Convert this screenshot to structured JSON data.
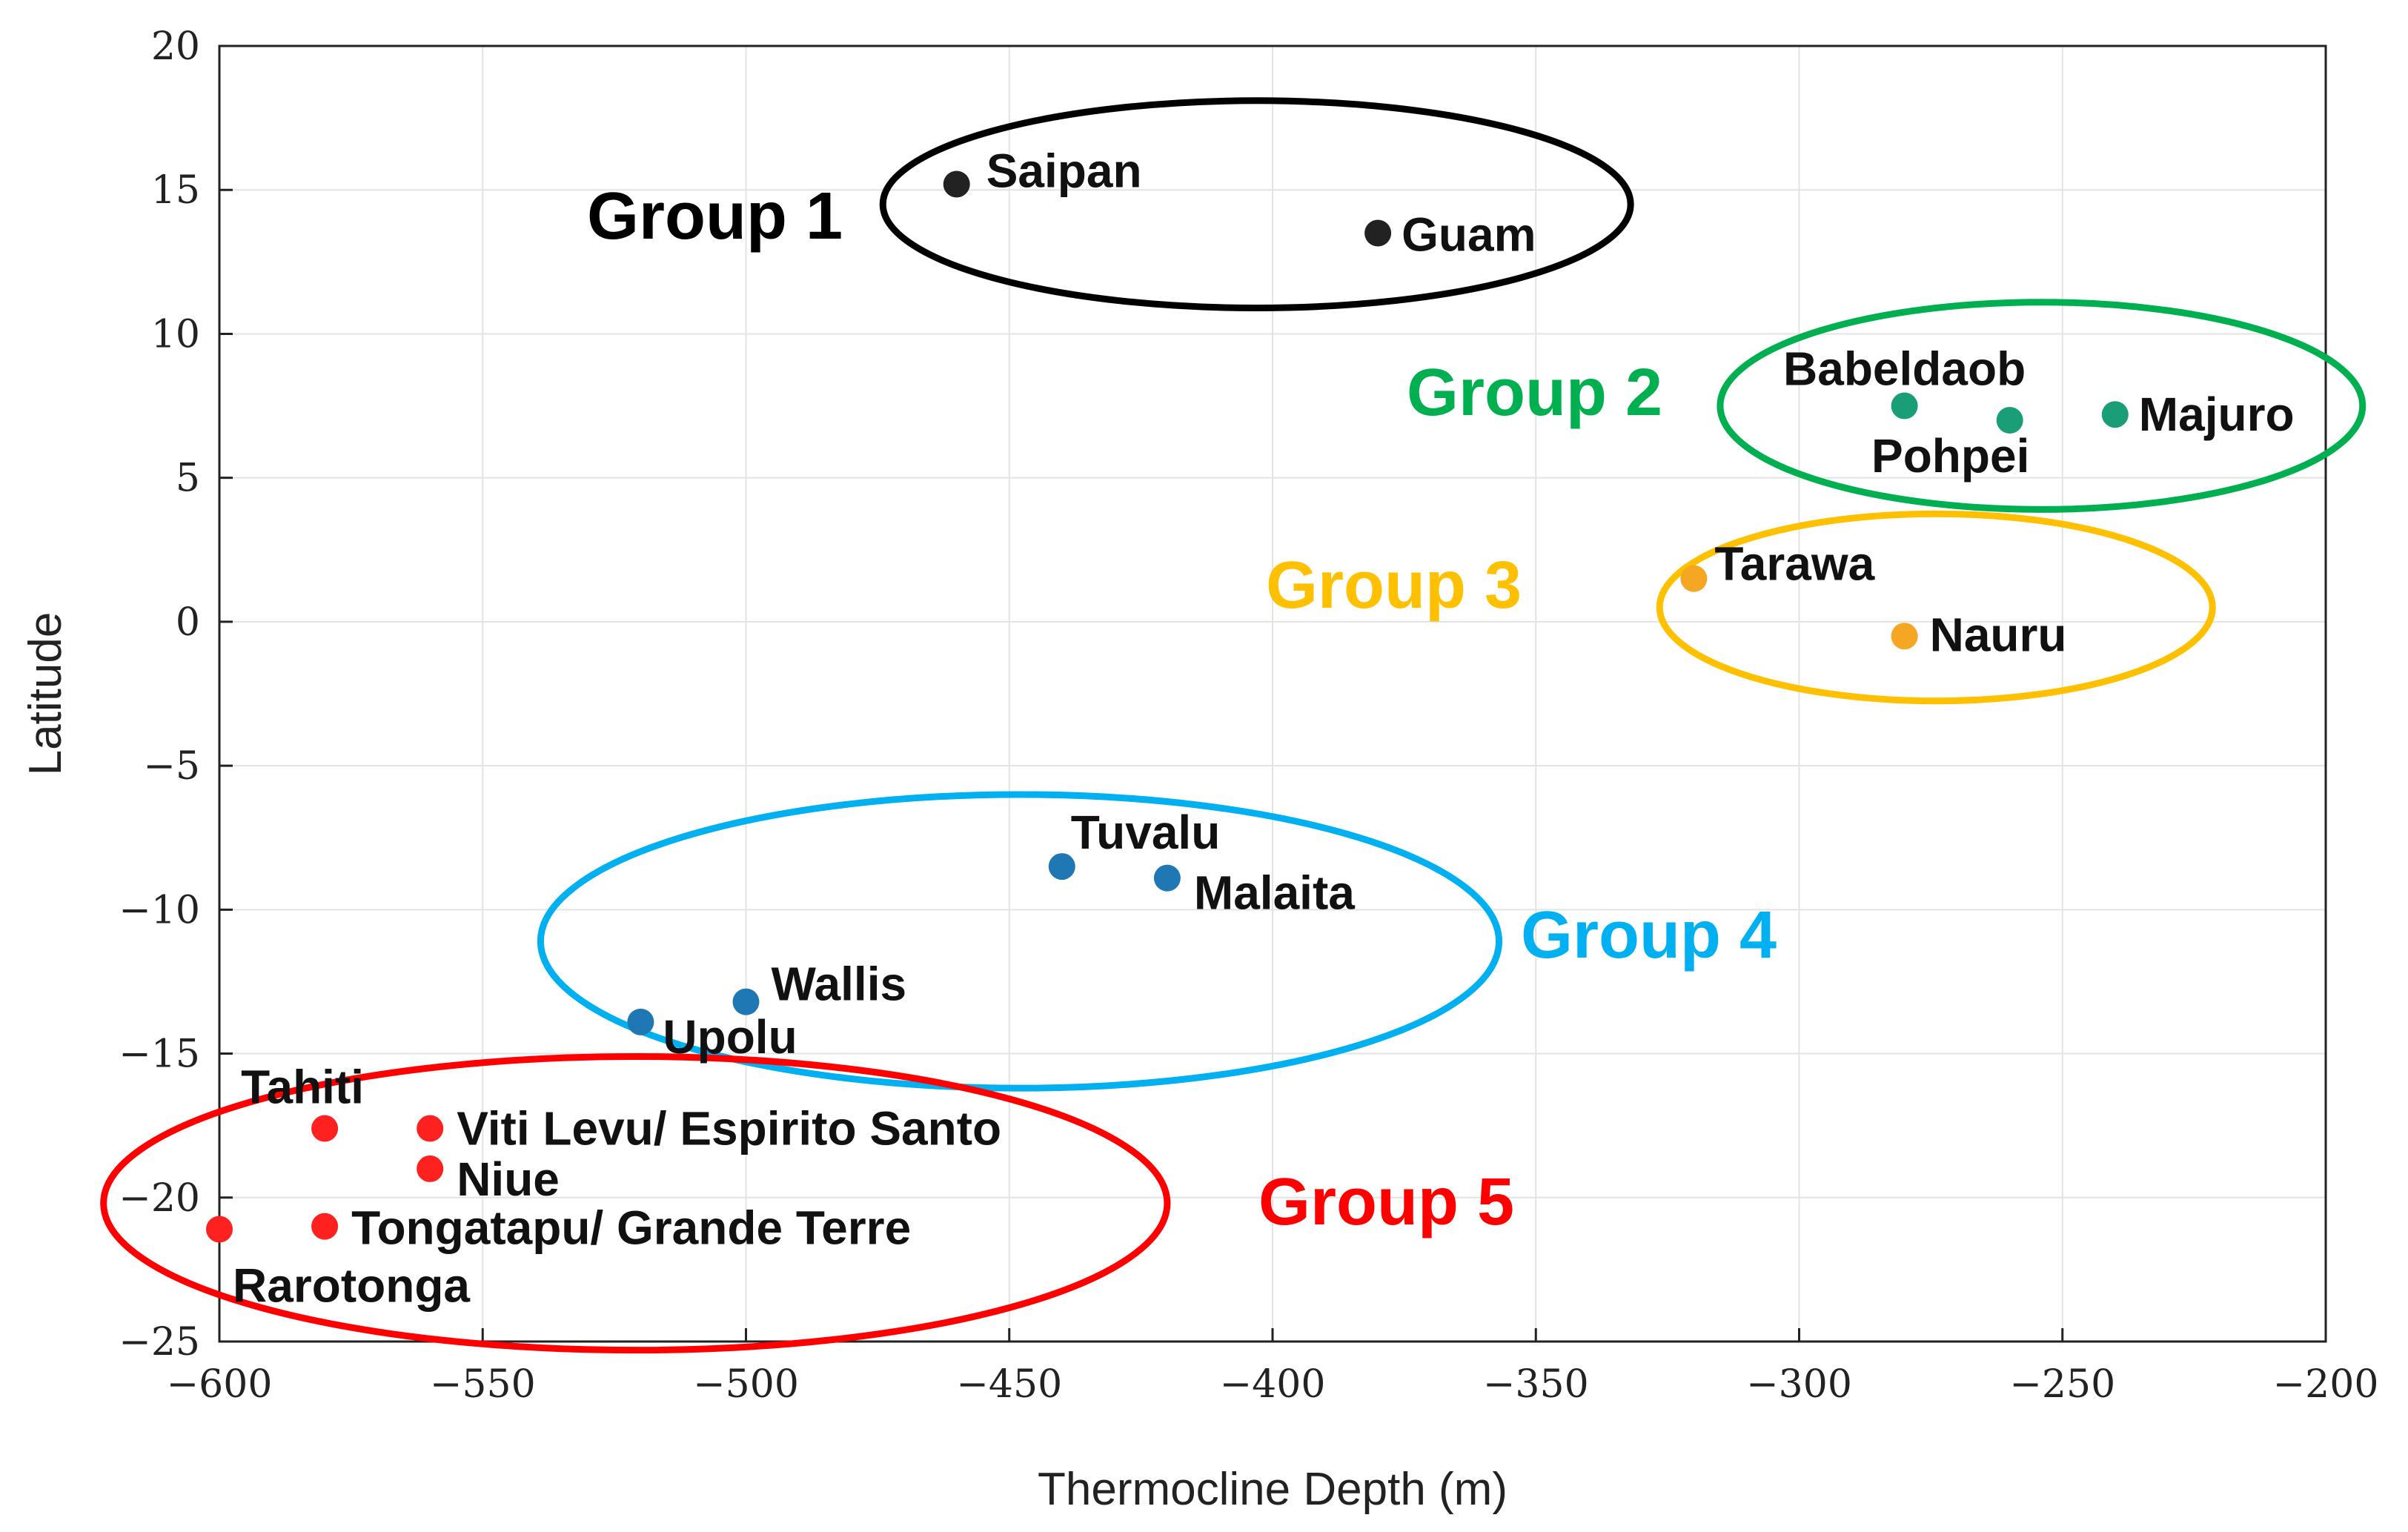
{
  "chart_data": {
    "type": "scatter",
    "title": "",
    "xlabel": "Thermocline Depth (m)",
    "ylabel": "Latitude",
    "xlim": [
      -600,
      -200
    ],
    "ylim": [
      -25,
      20
    ],
    "xticks": [
      -600,
      -550,
      -500,
      -450,
      -400,
      -350,
      -300,
      -250,
      -200
    ],
    "yticks": [
      -25,
      -20,
      -15,
      -10,
      -5,
      0,
      5,
      10,
      15,
      20
    ],
    "xtick_labels": [
      "−600",
      "−550",
      "−500",
      "−450",
      "−400",
      "−350",
      "−300",
      "−250",
      "−200"
    ],
    "ytick_labels": [
      "−25",
      "−20",
      "−15",
      "−10",
      "−5",
      "0",
      "5",
      "10",
      "15",
      "20"
    ],
    "grid": true,
    "legend": "none",
    "groups": [
      {
        "name": "Group 1",
        "color": "#000000",
        "marker_color": "#222222",
        "ellipse": {
          "cx": -403,
          "cy": 14.5,
          "rx": 71,
          "ry": 3.6
        },
        "points": [
          {
            "label": "Saipan",
            "x": -460,
            "y": 15.2
          },
          {
            "label": "Guam",
            "x": -380,
            "y": 13.5
          }
        ]
      },
      {
        "name": "Group 2",
        "color": "#00b050",
        "marker_color": "#1a9e78",
        "ellipse": {
          "cx": -254,
          "cy": 7.5,
          "rx": 61,
          "ry": 3.6
        },
        "points": [
          {
            "label": "Babeldaob",
            "x": -280,
            "y": 7.5
          },
          {
            "label": "Pohpei",
            "x": -260,
            "y": 7.0
          },
          {
            "label": "Majuro",
            "x": -240,
            "y": 7.2
          }
        ]
      },
      {
        "name": "Group 3",
        "color": "#ffc000",
        "marker_color": "#f5a623",
        "ellipse": {
          "cx": -274,
          "cy": 0.5,
          "rx": 52.5,
          "ry": 3.25
        },
        "points": [
          {
            "label": "Tarawa",
            "x": -320,
            "y": 1.5
          },
          {
            "label": "Nauru",
            "x": -280,
            "y": -0.5
          }
        ]
      },
      {
        "name": "Group 4",
        "color": "#00b0f0",
        "marker_color": "#1f77b4",
        "ellipse": {
          "cx": -448,
          "cy": -11.1,
          "rx": 91,
          "ry": 5.1
        },
        "points": [
          {
            "label": "Tuvalu",
            "x": -440,
            "y": -8.5
          },
          {
            "label": "Malaita",
            "x": -420,
            "y": -8.9
          },
          {
            "label": "Wallis",
            "x": -500,
            "y": -13.2
          },
          {
            "label": "Upolu",
            "x": -520,
            "y": -13.9
          }
        ]
      },
      {
        "name": "Group 5",
        "color": "#ff0000",
        "marker_color": "#ff2020",
        "ellipse": {
          "cx": -521,
          "cy": -20.2,
          "rx": 101,
          "ry": 5.1
        },
        "points": [
          {
            "label": "Tahiti",
            "x": -580,
            "y": -17.6
          },
          {
            "label": "Viti Levu/ Espirito Santo",
            "x": -560,
            "y": -17.6
          },
          {
            "label": "Niue",
            "x": -560,
            "y": -19.0
          },
          {
            "label": "Tongatapu/ Grande Terre",
            "x": -580,
            "y": -21.0
          },
          {
            "label": "Rarotonga",
            "x": -600,
            "y": -21.1
          }
        ]
      }
    ]
  }
}
